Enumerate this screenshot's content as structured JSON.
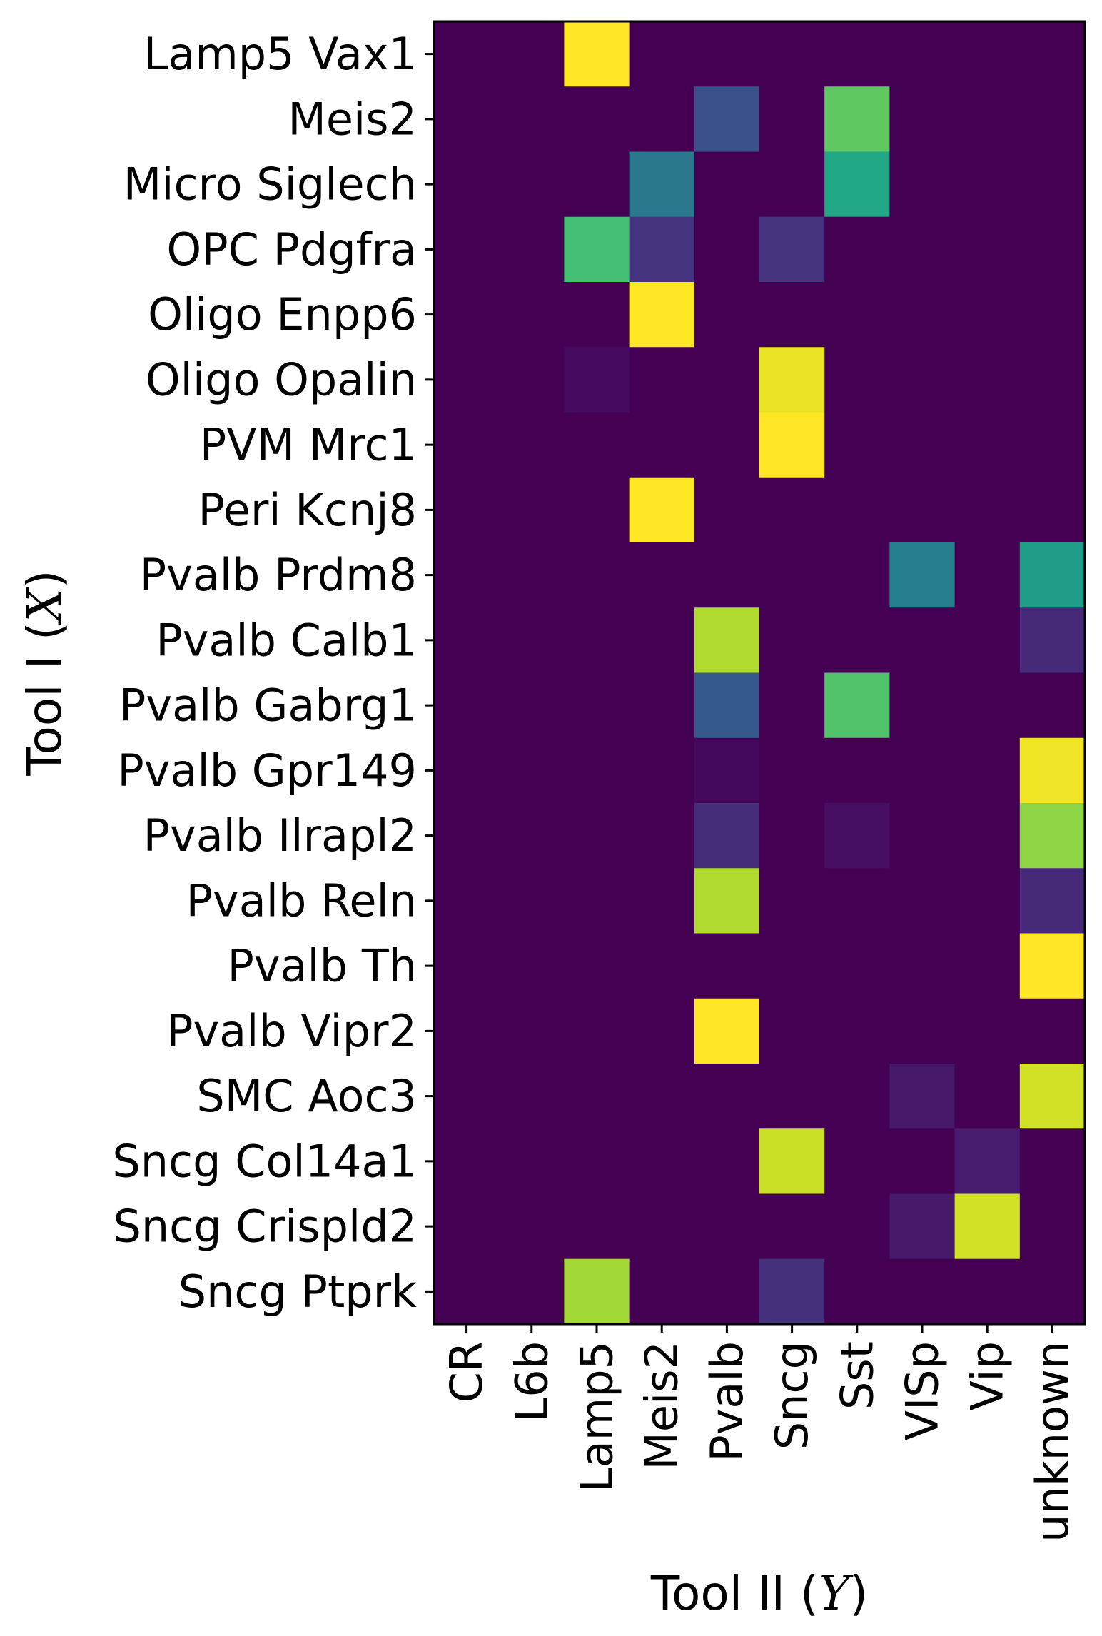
{
  "chart_data": {
    "type": "heatmap",
    "colormap": "viridis",
    "ylabel_text": "Tool I (",
    "ylabel_math": "X",
    "ylabel_close": ")",
    "xlabel_text": "Tool II (",
    "xlabel_math": "Y",
    "xlabel_close": ")",
    "x_categories": [
      "CR",
      "L6b",
      "Lamp5",
      "Meis2",
      "Pvalb",
      "Sncg",
      "Sst",
      "VISp",
      "Vip",
      "unknown"
    ],
    "y_categories": [
      "Lamp5 Vax1",
      "Meis2",
      "Micro Siglech",
      "OPC Pdgfra",
      "Oligo Enpp6",
      "Oligo Opalin",
      "PVM Mrc1",
      "Peri Kcnj8",
      "Pvalb Prdm8",
      "Pvalb Calb1",
      "Pvalb Gabrg1",
      "Pvalb Gpr149",
      "Pvalb Ilrapl2",
      "Pvalb Reln",
      "Pvalb Th",
      "Pvalb Vipr2",
      "SMC Aoc3",
      "Sncg Col14a1",
      "Sncg Crispld2",
      "Sncg Ptprk"
    ],
    "vmin": 0,
    "vmax": 1,
    "values": [
      [
        0,
        0,
        1.0,
        0,
        0,
        0,
        0,
        0,
        0,
        0
      ],
      [
        0,
        0,
        0,
        0,
        0.25,
        0,
        0.75,
        0,
        0,
        0
      ],
      [
        0,
        0,
        0,
        0.4,
        0,
        0,
        0.6,
        0,
        0,
        0
      ],
      [
        0,
        0,
        0.7,
        0.15,
        0,
        0.15,
        0,
        0,
        0,
        0
      ],
      [
        0,
        0,
        0,
        1.0,
        0,
        0,
        0,
        0,
        0,
        0
      ],
      [
        0,
        0,
        0.03,
        0,
        0,
        0.97,
        0,
        0,
        0,
        0
      ],
      [
        0,
        0,
        0,
        0,
        0,
        1.0,
        0,
        0,
        0,
        0
      ],
      [
        0,
        0,
        0,
        1.0,
        0,
        0,
        0,
        0,
        0,
        0
      ],
      [
        0,
        0,
        0,
        0,
        0,
        0,
        0,
        0.43,
        0,
        0.55
      ],
      [
        0,
        0,
        0,
        0,
        0.88,
        0,
        0,
        0,
        0,
        0.12
      ],
      [
        0,
        0,
        0,
        0,
        0.28,
        0,
        0.72,
        0,
        0,
        0
      ],
      [
        0,
        0,
        0,
        0,
        0.02,
        0,
        0,
        0,
        0,
        0.98
      ],
      [
        0,
        0,
        0,
        0,
        0.13,
        0,
        0.04,
        0,
        0,
        0.83
      ],
      [
        0,
        0,
        0,
        0,
        0.88,
        0,
        0,
        0,
        0,
        0.12
      ],
      [
        0,
        0,
        0,
        0,
        0,
        0,
        0,
        0,
        0,
        1.0
      ],
      [
        0,
        0,
        0,
        0,
        1.0,
        0,
        0,
        0,
        0,
        0
      ],
      [
        0,
        0,
        0,
        0,
        0,
        0,
        0,
        0.07,
        0,
        0.93
      ],
      [
        0,
        0,
        0,
        0,
        0,
        0.92,
        0,
        0,
        0.08,
        0
      ],
      [
        0,
        0,
        0,
        0,
        0,
        0,
        0,
        0.07,
        0.93,
        0
      ],
      [
        0,
        0,
        0.86,
        0,
        0,
        0.14,
        0,
        0,
        0,
        0
      ]
    ]
  }
}
